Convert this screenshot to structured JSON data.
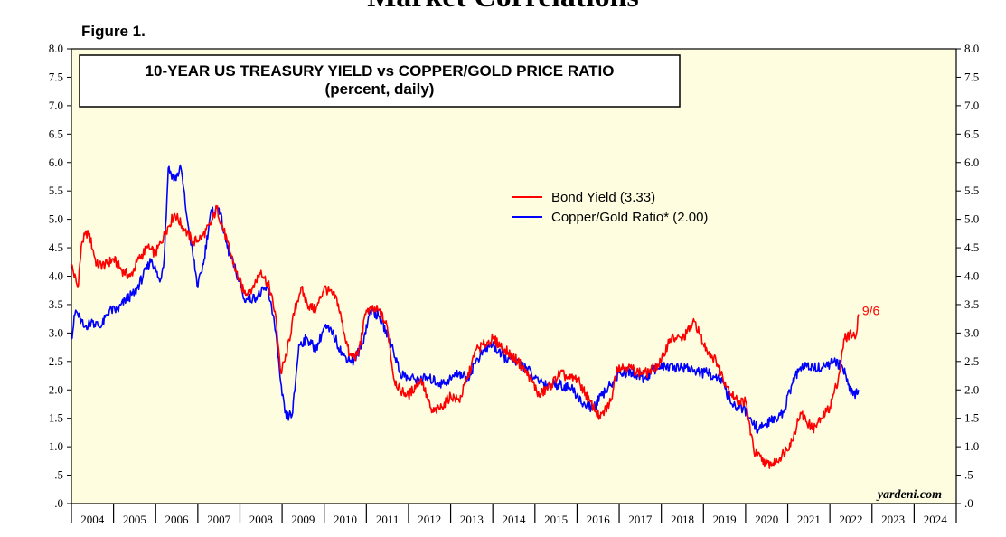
{
  "page": {
    "heading": "Market Correlations",
    "figure_label": "Figure 1."
  },
  "colors": {
    "plot_background": "#fffde0",
    "bond_yield": "#ff0000",
    "copper_gold": "#0000ff"
  },
  "chart_data": {
    "type": "line",
    "title": "10-YEAR US TREASURY YIELD vs COPPER/GOLD PRICE RATIO",
    "subtitle": "(percent, daily)",
    "xlabel": "",
    "ylabel": "",
    "x_range": [
      2004,
      2025
    ],
    "ylim": [
      0,
      8
    ],
    "y_ticks": [
      0,
      0.5,
      1,
      1.5,
      2,
      2.5,
      3,
      3.5,
      4,
      4.5,
      5,
      5.5,
      6,
      6.5,
      7,
      7.5,
      8
    ],
    "y_tick_labels": [
      ".0",
      ".5",
      "1.0",
      "1.5",
      "2.0",
      "2.5",
      "3.0",
      "3.5",
      "4.0",
      "4.5",
      "5.0",
      "5.5",
      "6.0",
      "6.5",
      "7.0",
      "7.5",
      "8.0"
    ],
    "x_tick_labels": [
      "2004",
      "2005",
      "2006",
      "2007",
      "2008",
      "2009",
      "2010",
      "2011",
      "2012",
      "2013",
      "2014",
      "2015",
      "2016",
      "2017",
      "2018",
      "2019",
      "2020",
      "2021",
      "2022",
      "2023",
      "2024"
    ],
    "legend_position": "upper-center",
    "grid": false,
    "series": [
      {
        "name": "Bond Yield (3.33)",
        "color": "#ff0000",
        "x": [
          2004.0,
          2004.15,
          2004.25,
          2004.4,
          2004.6,
          2004.8,
          2005.0,
          2005.2,
          2005.4,
          2005.6,
          2005.8,
          2006.0,
          2006.25,
          2006.45,
          2006.7,
          2006.9,
          2007.1,
          2007.3,
          2007.45,
          2007.7,
          2007.9,
          2008.1,
          2008.3,
          2008.5,
          2008.7,
          2008.85,
          2008.97,
          2009.1,
          2009.3,
          2009.45,
          2009.6,
          2009.8,
          2010.0,
          2010.3,
          2010.6,
          2010.8,
          2011.0,
          2011.3,
          2011.5,
          2011.65,
          2011.8,
          2012.0,
          2012.3,
          2012.55,
          2012.8,
          2013.0,
          2013.2,
          2013.4,
          2013.6,
          2013.8,
          2014.0,
          2014.3,
          2014.6,
          2014.9,
          2015.1,
          2015.4,
          2015.6,
          2015.8,
          2016.0,
          2016.3,
          2016.55,
          2016.8,
          2016.95,
          2017.2,
          2017.5,
          2017.7,
          2018.0,
          2018.2,
          2018.5,
          2018.8,
          2019.0,
          2019.3,
          2019.6,
          2019.8,
          2020.0,
          2020.2,
          2020.5,
          2020.7,
          2020.9,
          2021.1,
          2021.3,
          2021.6,
          2021.8,
          2022.0,
          2022.2,
          2022.35,
          2022.5,
          2022.6,
          2022.68
        ],
        "y": [
          4.2,
          3.8,
          4.6,
          4.8,
          4.2,
          4.2,
          4.3,
          4.1,
          4.0,
          4.3,
          4.5,
          4.4,
          4.8,
          5.1,
          4.8,
          4.6,
          4.7,
          4.9,
          5.2,
          4.6,
          4.1,
          3.7,
          3.8,
          4.1,
          3.8,
          3.3,
          2.3,
          2.6,
          3.4,
          3.8,
          3.5,
          3.4,
          3.8,
          3.6,
          2.6,
          2.6,
          3.4,
          3.4,
          3.1,
          2.2,
          2.0,
          1.9,
          2.2,
          1.6,
          1.7,
          1.9,
          1.8,
          2.2,
          2.7,
          2.8,
          2.9,
          2.7,
          2.5,
          2.2,
          1.9,
          2.1,
          2.3,
          2.2,
          2.2,
          1.8,
          1.5,
          1.8,
          2.4,
          2.4,
          2.3,
          2.3,
          2.5,
          2.9,
          2.9,
          3.2,
          2.8,
          2.5,
          2.0,
          1.8,
          1.8,
          0.9,
          0.7,
          0.7,
          0.9,
          1.1,
          1.6,
          1.3,
          1.5,
          1.7,
          2.2,
          2.9,
          3.0,
          2.9,
          3.33
        ]
      },
      {
        "name": "Copper/Gold Ratio* (2.00)",
        "color": "#0000ff",
        "x": [
          2004.0,
          2004.1,
          2004.3,
          2004.5,
          2004.7,
          2004.9,
          2005.1,
          2005.3,
          2005.5,
          2005.7,
          2005.9,
          2006.1,
          2006.2,
          2006.3,
          2006.45,
          2006.6,
          2006.75,
          2006.9,
          2007.0,
          2007.15,
          2007.3,
          2007.5,
          2007.7,
          2007.9,
          2008.1,
          2008.3,
          2008.5,
          2008.65,
          2008.8,
          2008.9,
          2009.0,
          2009.1,
          2009.25,
          2009.4,
          2009.6,
          2009.8,
          2010.0,
          2010.2,
          2010.45,
          2010.7,
          2010.9,
          2011.1,
          2011.3,
          2011.6,
          2011.8,
          2012.0,
          2012.2,
          2012.5,
          2012.8,
          2013.0,
          2013.2,
          2013.4,
          2013.6,
          2013.8,
          2014.0,
          2014.2,
          2014.5,
          2014.8,
          2015.0,
          2015.3,
          2015.6,
          2015.9,
          2016.0,
          2016.2,
          2016.4,
          2016.6,
          2016.8,
          2017.0,
          2017.3,
          2017.6,
          2017.9,
          2018.1,
          2018.3,
          2018.6,
          2018.9,
          2019.1,
          2019.4,
          2019.7,
          2019.9,
          2020.1,
          2020.3,
          2020.5,
          2020.7,
          2020.9,
          2021.1,
          2021.3,
          2021.6,
          2021.9,
          2022.1,
          2022.3,
          2022.45,
          2022.55,
          2022.68
        ],
        "y": [
          2.9,
          3.4,
          3.1,
          3.2,
          3.1,
          3.4,
          3.4,
          3.6,
          3.7,
          4.0,
          4.3,
          3.9,
          4.3,
          5.9,
          5.7,
          5.9,
          5.0,
          4.3,
          3.8,
          4.3,
          5.1,
          5.2,
          4.5,
          4.1,
          3.6,
          3.6,
          3.7,
          3.8,
          3.3,
          2.6,
          1.9,
          1.5,
          1.6,
          2.8,
          2.9,
          2.7,
          3.1,
          3.0,
          2.6,
          2.5,
          2.8,
          3.4,
          3.3,
          2.8,
          2.3,
          2.2,
          2.2,
          2.2,
          2.1,
          2.2,
          2.3,
          2.2,
          2.5,
          2.7,
          2.8,
          2.6,
          2.5,
          2.4,
          2.2,
          2.1,
          2.1,
          2.0,
          1.9,
          1.7,
          1.7,
          1.9,
          2.1,
          2.3,
          2.3,
          2.2,
          2.4,
          2.4,
          2.4,
          2.4,
          2.3,
          2.3,
          2.2,
          1.7,
          1.7,
          1.5,
          1.3,
          1.4,
          1.5,
          1.6,
          2.1,
          2.4,
          2.4,
          2.4,
          2.5,
          2.4,
          2.1,
          1.9,
          2.0
        ]
      }
    ],
    "annotations": [
      {
        "text": "9/6",
        "color": "#ff0000",
        "x": 2022.68,
        "y": 3.33
      }
    ],
    "source": "yardeni.com"
  }
}
